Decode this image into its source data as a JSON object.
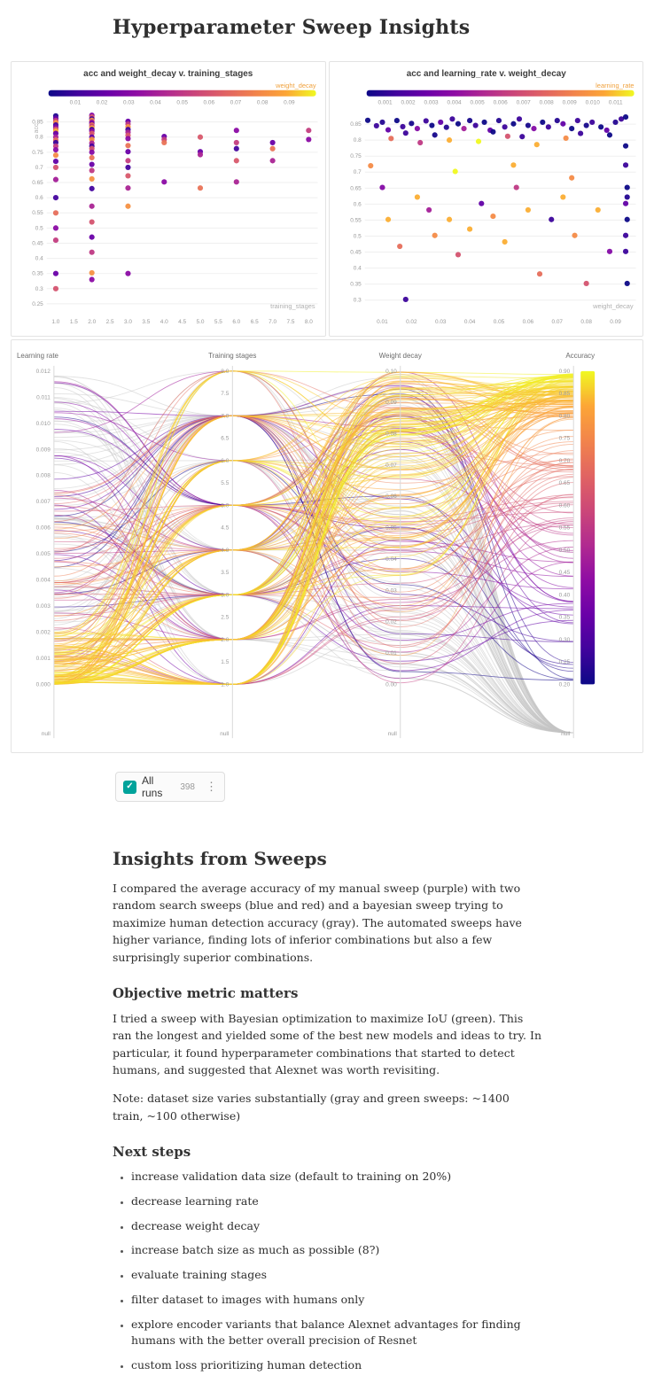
{
  "page": {
    "title": "Hyperparameter Sweep Insights"
  },
  "colors": {
    "accent_gradient": [
      "#0d0887",
      "#41049d",
      "#6a00a8",
      "#8f0da4",
      "#b12a90",
      "#cc4778",
      "#e16462",
      "#f2844b",
      "#fca636",
      "#f0f921"
    ],
    "legend_label": "#f0a13c",
    "teal": "#00a39b",
    "tick_text": "#9a9a9a",
    "grid_line": "#efefef",
    "axis_line": "#d9d9d9",
    "gray_series": "#c6c6c6",
    "panel_title": "#3d3d3d"
  },
  "chart_data": [
    {
      "type": "scatter",
      "title": "acc and weight_decay v. training_stages",
      "legend_label": "weight_decay",
      "legend_ticks": [
        "0.01",
        "0.02",
        "0.03",
        "0.04",
        "0.05",
        "0.06",
        "0.07",
        "0.08",
        "0.09"
      ],
      "legend_domain": [
        0,
        0.1
      ],
      "color_domain": [
        0,
        0.1
      ],
      "xlabel": "training_stages",
      "ylabel": "acc",
      "x_ticks": [
        "1.0",
        "1.5",
        "2.0",
        "2.5",
        "3.0",
        "3.5",
        "4.0",
        "4.5",
        "5.0",
        "5.5",
        "6.0",
        "6.5",
        "7.0",
        "7.5",
        "8.0"
      ],
      "x_domain": [
        0.75,
        8.25
      ],
      "y_ticks": [
        "0.85",
        "0.8",
        "0.75",
        "0.7",
        "0.65",
        "0.6",
        "0.55",
        "0.5",
        "0.45",
        "0.4",
        "0.35",
        "0.3",
        "0.25"
      ],
      "y_domain": [
        0.22,
        0.885
      ],
      "points": [
        [
          1,
          0.87,
          0.004
        ],
        [
          1,
          0.862,
          0.02
        ],
        [
          1,
          0.855,
          0.05
        ],
        [
          1,
          0.848,
          0.08
        ],
        [
          1,
          0.84,
          0.012
        ],
        [
          1,
          0.833,
          0.03
        ],
        [
          1,
          0.826,
          0.06
        ],
        [
          1,
          0.82,
          0.09
        ],
        [
          1,
          0.812,
          0.022
        ],
        [
          1,
          0.8,
          0.042
        ],
        [
          1,
          0.79,
          0.07
        ],
        [
          1,
          0.782,
          0.01
        ],
        [
          1,
          0.77,
          0.052
        ],
        [
          1,
          0.758,
          0.032
        ],
        [
          1,
          0.74,
          0.08
        ],
        [
          1,
          0.72,
          0.02
        ],
        [
          1,
          0.7,
          0.06
        ],
        [
          1,
          0.66,
          0.04
        ],
        [
          1,
          0.6,
          0.012
        ],
        [
          1,
          0.55,
          0.07
        ],
        [
          1,
          0.5,
          0.032
        ],
        [
          1,
          0.46,
          0.052
        ],
        [
          1,
          0.35,
          0.022
        ],
        [
          1,
          0.3,
          0.06
        ],
        [
          2,
          0.872,
          0.03
        ],
        [
          2,
          0.866,
          0.062
        ],
        [
          2,
          0.86,
          0.012
        ],
        [
          2,
          0.855,
          0.082
        ],
        [
          2,
          0.85,
          0.042
        ],
        [
          2,
          0.845,
          0.022
        ],
        [
          2,
          0.84,
          0.072
        ],
        [
          2,
          0.835,
          0.052
        ],
        [
          2,
          0.83,
          0.09
        ],
        [
          2,
          0.825,
          0.01
        ],
        [
          2,
          0.82,
          0.032
        ],
        [
          2,
          0.812,
          0.062
        ],
        [
          2,
          0.8,
          0.02
        ],
        [
          2,
          0.792,
          0.082
        ],
        [
          2,
          0.78,
          0.042
        ],
        [
          2,
          0.77,
          0.012
        ],
        [
          2,
          0.762,
          0.06
        ],
        [
          2,
          0.75,
          0.03
        ],
        [
          2,
          0.732,
          0.072
        ],
        [
          2,
          0.71,
          0.022
        ],
        [
          2,
          0.69,
          0.05
        ],
        [
          2,
          0.662,
          0.082
        ],
        [
          2,
          0.63,
          0.012
        ],
        [
          2,
          0.572,
          0.042
        ],
        [
          2,
          0.52,
          0.06
        ],
        [
          2,
          0.47,
          0.022
        ],
        [
          2,
          0.42,
          0.05
        ],
        [
          2,
          0.352,
          0.082
        ],
        [
          2,
          0.33,
          0.032
        ],
        [
          3,
          0.852,
          0.022
        ],
        [
          3,
          0.843,
          0.05
        ],
        [
          3,
          0.834,
          0.082
        ],
        [
          3,
          0.825,
          0.012
        ],
        [
          3,
          0.816,
          0.042
        ],
        [
          3,
          0.806,
          0.062
        ],
        [
          3,
          0.795,
          0.032
        ],
        [
          3,
          0.772,
          0.072
        ],
        [
          3,
          0.752,
          0.022
        ],
        [
          3,
          0.722,
          0.052
        ],
        [
          3,
          0.7,
          0.012
        ],
        [
          3,
          0.672,
          0.062
        ],
        [
          3,
          0.632,
          0.042
        ],
        [
          3,
          0.572,
          0.082
        ],
        [
          3,
          0.35,
          0.032
        ],
        [
          4,
          0.802,
          0.022
        ],
        [
          4,
          0.792,
          0.052
        ],
        [
          4,
          0.782,
          0.072
        ],
        [
          4,
          0.652,
          0.032
        ],
        [
          5,
          0.8,
          0.062
        ],
        [
          5,
          0.752,
          0.022
        ],
        [
          5,
          0.742,
          0.042
        ],
        [
          5,
          0.632,
          0.072
        ],
        [
          6,
          0.822,
          0.032
        ],
        [
          6,
          0.782,
          0.052
        ],
        [
          6,
          0.762,
          0.012
        ],
        [
          6,
          0.722,
          0.062
        ],
        [
          6,
          0.652,
          0.042
        ],
        [
          7,
          0.782,
          0.022
        ],
        [
          7,
          0.762,
          0.072
        ],
        [
          7,
          0.722,
          0.042
        ],
        [
          8,
          0.822,
          0.052
        ],
        [
          8,
          0.792,
          0.032
        ]
      ]
    },
    {
      "type": "scatter",
      "title": "acc and learning_rate v. weight_decay",
      "legend_label": "learning_rate",
      "legend_ticks": [
        "0.001",
        "0.002",
        "0.003",
        "0.004",
        "0.005",
        "0.006",
        "0.007",
        "0.008",
        "0.009",
        "0.010",
        "0.011"
      ],
      "legend_domain": [
        0.0002,
        0.0118
      ],
      "color_domain": [
        0.001,
        0.011
      ],
      "xlabel": "weight_decay",
      "ylabel": "",
      "x_ticks": [
        "0.01",
        "0.02",
        "0.03",
        "0.04",
        "0.05",
        "0.06",
        "0.07",
        "0.08",
        "0.09"
      ],
      "x_domain": [
        0.004,
        0.097
      ],
      "y_ticks": [
        "0.85",
        "0.8",
        "0.75",
        "0.7",
        "0.65",
        "0.6",
        "0.55",
        "0.5",
        "0.45",
        "0.4",
        "0.35",
        "0.3"
      ],
      "y_domain": [
        0.26,
        0.89
      ],
      "points": [
        [
          0.005,
          0.862,
          0.001
        ],
        [
          0.008,
          0.845,
          0.002
        ],
        [
          0.01,
          0.856,
          0.0015
        ],
        [
          0.012,
          0.832,
          0.003
        ],
        [
          0.015,
          0.861,
          0.001
        ],
        [
          0.017,
          0.842,
          0.002
        ],
        [
          0.02,
          0.852,
          0.0012
        ],
        [
          0.022,
          0.836,
          0.004
        ],
        [
          0.025,
          0.86,
          0.002
        ],
        [
          0.027,
          0.846,
          0.001
        ],
        [
          0.03,
          0.856,
          0.003
        ],
        [
          0.032,
          0.84,
          0.0015
        ],
        [
          0.034,
          0.866,
          0.002
        ],
        [
          0.036,
          0.851,
          0.001
        ],
        [
          0.038,
          0.836,
          0.005
        ],
        [
          0.04,
          0.861,
          0.0012
        ],
        [
          0.042,
          0.846,
          0.002
        ],
        [
          0.045,
          0.856,
          0.001
        ],
        [
          0.047,
          0.831,
          0.003
        ],
        [
          0.05,
          0.861,
          0.0015
        ],
        [
          0.052,
          0.841,
          0.002
        ],
        [
          0.055,
          0.851,
          0.001
        ],
        [
          0.057,
          0.866,
          0.002
        ],
        [
          0.06,
          0.846,
          0.0012
        ],
        [
          0.062,
          0.836,
          0.004
        ],
        [
          0.065,
          0.856,
          0.001
        ],
        [
          0.067,
          0.841,
          0.002
        ],
        [
          0.07,
          0.861,
          0.0015
        ],
        [
          0.072,
          0.851,
          0.003
        ],
        [
          0.075,
          0.836,
          0.001
        ],
        [
          0.077,
          0.861,
          0.002
        ],
        [
          0.08,
          0.846,
          0.0012
        ],
        [
          0.082,
          0.856,
          0.002
        ],
        [
          0.085,
          0.841,
          0.001
        ],
        [
          0.087,
          0.831,
          0.003
        ],
        [
          0.09,
          0.856,
          0.0015
        ],
        [
          0.092,
          0.866,
          0.002
        ],
        [
          0.018,
          0.822,
          0.002
        ],
        [
          0.048,
          0.826,
          0.001
        ],
        [
          0.078,
          0.821,
          0.002
        ],
        [
          0.028,
          0.816,
          0.0012
        ],
        [
          0.058,
          0.811,
          0.002
        ],
        [
          0.088,
          0.816,
          0.001
        ],
        [
          0.013,
          0.805,
          0.008
        ],
        [
          0.033,
          0.8,
          0.01
        ],
        [
          0.053,
          0.812,
          0.007
        ],
        [
          0.073,
          0.806,
          0.009
        ],
        [
          0.023,
          0.792,
          0.006
        ],
        [
          0.063,
          0.786,
          0.01
        ],
        [
          0.043,
          0.796,
          0.011
        ],
        [
          0.006,
          0.72,
          0.009
        ],
        [
          0.01,
          0.652,
          0.004
        ],
        [
          0.012,
          0.552,
          0.01
        ],
        [
          0.016,
          0.468,
          0.008
        ],
        [
          0.018,
          0.302,
          0.002
        ],
        [
          0.022,
          0.622,
          0.01
        ],
        [
          0.026,
          0.582,
          0.005
        ],
        [
          0.028,
          0.502,
          0.009
        ],
        [
          0.033,
          0.552,
          0.01
        ],
        [
          0.036,
          0.442,
          0.007
        ],
        [
          0.04,
          0.522,
          0.01
        ],
        [
          0.044,
          0.602,
          0.003
        ],
        [
          0.048,
          0.562,
          0.009
        ],
        [
          0.052,
          0.482,
          0.01
        ],
        [
          0.056,
          0.652,
          0.006
        ],
        [
          0.06,
          0.582,
          0.01
        ],
        [
          0.064,
          0.382,
          0.008
        ],
        [
          0.068,
          0.552,
          0.002
        ],
        [
          0.072,
          0.622,
          0.01
        ],
        [
          0.076,
          0.502,
          0.009
        ],
        [
          0.08,
          0.352,
          0.007
        ],
        [
          0.084,
          0.582,
          0.01
        ],
        [
          0.088,
          0.452,
          0.004
        ],
        [
          0.035,
          0.702,
          0.011
        ],
        [
          0.055,
          0.722,
          0.01
        ],
        [
          0.075,
          0.682,
          0.009
        ],
        [
          0.0935,
          0.782,
          0.001
        ],
        [
          0.0935,
          0.722,
          0.002
        ],
        [
          0.094,
          0.652,
          0.001
        ],
        [
          0.0935,
          0.602,
          0.003
        ],
        [
          0.094,
          0.552,
          0.001
        ],
        [
          0.0935,
          0.502,
          0.002
        ],
        [
          0.094,
          0.622,
          0.0015
        ],
        [
          0.0935,
          0.452,
          0.002
        ],
        [
          0.094,
          0.352,
          0.001
        ],
        [
          0.0935,
          0.872,
          0.001
        ]
      ]
    },
    {
      "type": "parallel_coordinates",
      "axes": [
        {
          "label": "Learning rate",
          "domain": [
            0,
            0.012
          ],
          "ticks": [
            "0.012",
            "0.011",
            "0.010",
            "0.009",
            "0.008",
            "0.007",
            "0.006",
            "0.005",
            "0.004",
            "0.003",
            "0.002",
            "0.001",
            "0.000"
          ],
          "null_label": "null"
        },
        {
          "label": "Training stages",
          "domain": [
            1,
            8
          ],
          "ticks": [
            "8.0",
            "7.5",
            "7.0",
            "6.5",
            "6.0",
            "5.5",
            "5.0",
            "4.5",
            "4.0",
            "3.5",
            "3.0",
            "2.5",
            "2.0",
            "1.5",
            "1.0"
          ],
          "null_label": "null"
        },
        {
          "label": "Weight decay",
          "domain": [
            0,
            0.1
          ],
          "ticks": [
            "0.10",
            "0.09",
            "0.08",
            "0.07",
            "0.06",
            "0.05",
            "0.04",
            "0.03",
            "0.02",
            "0.01",
            "0.00"
          ],
          "null_label": "null"
        },
        {
          "label": "Accuracy",
          "domain": [
            0.2,
            0.9
          ],
          "ticks": [
            "0.90",
            "0.85",
            "0.80",
            "0.75",
            "0.70",
            "0.65",
            "0.60",
            "0.55",
            "0.50",
            "0.45",
            "0.40",
            "0.35",
            "0.30",
            "0.25",
            "0.20"
          ],
          "null_label": "null"
        }
      ],
      "colorbar": {
        "metric": "Accuracy",
        "top": 0.9,
        "bottom": 0.2
      },
      "series_spec": {
        "seed": 20,
        "groups": [
          {
            "name": "bayesian-gray",
            "count": 70,
            "lr": [
              0,
              0.012
            ],
            "stages": [
              1,
              8
            ],
            "wd": [
              0,
              0.1
            ],
            "acc": null,
            "color": "#c6c6c6",
            "opacity": 0.5
          },
          {
            "name": "low-accuracy-purple",
            "count": 34,
            "lr": [
              0.0025,
              0.012
            ],
            "stages": [
              1,
              8
            ],
            "wd": [
              0,
              0.1
            ],
            "acc": [
              0.2,
              0.58
            ],
            "opacity": 0.55
          },
          {
            "name": "mid-accuracy-warm",
            "count": 46,
            "lr": [
              0.0005,
              0.0075
            ],
            "stages": [
              1,
              8
            ],
            "wd": [
              0,
              0.1
            ],
            "acc": [
              0.55,
              0.8
            ],
            "opacity": 0.5
          },
          {
            "name": "high-accuracy-orange",
            "count": 115,
            "lr": [
              0,
              0.002
            ],
            "lr_bias": "low",
            "stages": [
              1,
              8
            ],
            "stages_bias": "low",
            "wd": [
              0.03,
              0.1
            ],
            "wd_bias": "high",
            "acc": [
              0.78,
              0.895
            ],
            "acc_bias": "high",
            "opacity": 0.55
          }
        ]
      }
    }
  ],
  "run_selector": {
    "label": "All runs",
    "count": "398",
    "menu_icon": "⋮",
    "check_glyph": "✓"
  },
  "article": {
    "h2": "Insights from Sweeps",
    "p1": "I compared the average accuracy of my manual sweep (purple) with two random search sweeps (blue and red) and a bayesian sweep trying to maximize human detection accuracy (gray). The automated sweeps have higher variance, finding lots of inferior combinations but also a few surprisingly superior combinations.",
    "h3a": "Objective metric matters",
    "p2": "I tried a sweep with Bayesian optimization to maximize IoU (green). This ran the longest and yielded some of the best new models and ideas to try. In particular, it found hyperparameter combinations that started to detect humans, and suggested that Alexnet was worth revisiting.",
    "p3": "Note: dataset size varies substantially (gray and green sweeps: ~1400 train, ~100 otherwise)",
    "h3b": "Next steps",
    "next_steps": [
      "increase validation data size (default to training on 20%)",
      "decrease learning rate",
      "decrease weight decay",
      "increase batch size as much as possible (8?)",
      "evaluate training stages",
      "filter dataset to images with humans only",
      "explore encoder variants that balance Alexnet advantages for finding humans with the better overall precision of Resnet",
      "custom loss prioritizing human detection"
    ]
  }
}
